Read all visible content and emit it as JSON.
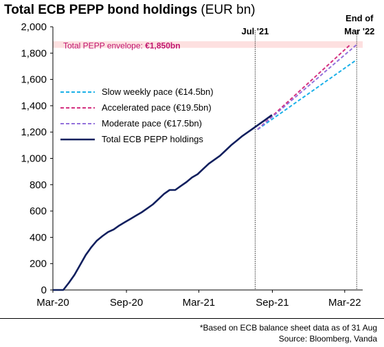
{
  "chart_data": {
    "type": "line",
    "title": "Total ECB PEPP bond holdings",
    "title_unit": "(EUR bn)",
    "ylim": [
      0,
      2000
    ],
    "yticks": [
      "0",
      "200",
      "400",
      "600",
      "800",
      "1,000",
      "1,200",
      "1,400",
      "1,600",
      "1,800",
      "2,000"
    ],
    "ytick_values": [
      0,
      200,
      400,
      600,
      800,
      1000,
      1200,
      1400,
      1600,
      1800,
      2000
    ],
    "xlim": [
      "2020-03-01",
      "2022-04-15"
    ],
    "xticks": [
      {
        "date": "2020-03-01",
        "label": "Mar-20"
      },
      {
        "date": "2020-09-01",
        "label": "Sep-20"
      },
      {
        "date": "2021-03-01",
        "label": "Mar-21"
      },
      {
        "date": "2021-09-01",
        "label": "Sep-21"
      },
      {
        "date": "2022-03-01",
        "label": "Mar-22"
      }
    ],
    "grid": false,
    "legend_placement": "left",
    "envelope": {
      "label": "Total PEPP envelope: ",
      "value_label": "€1,850bn",
      "value": 1850,
      "color": "#c0146e",
      "band_color": "#fde0e0"
    },
    "vlines": [
      {
        "date": "2021-07-20",
        "label": "Jul '21"
      },
      {
        "date": "2022-03-31",
        "label_line1": "End of",
        "label_line2": "Mar '22"
      }
    ],
    "series": [
      {
        "name": "Slow weekly pace (€14.5bn)",
        "color": "#1ab0e8",
        "dash": true,
        "x": [
          "2021-07-26",
          "2022-03-31"
        ],
        "y": [
          1220,
          1750
        ]
      },
      {
        "name": "Accelerated pace (€19.5bn)",
        "color": "#d4307f",
        "dash": true,
        "x": [
          "2021-07-26",
          "2022-03-15"
        ],
        "y": [
          1220,
          1865
        ]
      },
      {
        "name": "Moderate pace (€17.5bn)",
        "color": "#9370db",
        "dash": true,
        "x": [
          "2021-07-26",
          "2022-03-31"
        ],
        "y": [
          1220,
          1865
        ]
      },
      {
        "name": "Total ECB PEPP holdings",
        "color": "#0f1f5e",
        "dash": false,
        "x": [
          "2020-03-01",
          "2020-03-27",
          "2020-04-10",
          "2020-04-24",
          "2020-05-08",
          "2020-05-22",
          "2020-06-05",
          "2020-06-19",
          "2020-07-03",
          "2020-07-17",
          "2020-07-31",
          "2020-08-14",
          "2020-08-28",
          "2020-09-11",
          "2020-09-25",
          "2020-10-09",
          "2020-10-23",
          "2020-11-06",
          "2020-11-20",
          "2020-12-04",
          "2020-12-18",
          "2021-01-01",
          "2021-01-15",
          "2021-01-29",
          "2021-02-12",
          "2021-02-26",
          "2021-03-12",
          "2021-03-26",
          "2021-04-09",
          "2021-04-23",
          "2021-05-07",
          "2021-05-21",
          "2021-06-04",
          "2021-06-18",
          "2021-07-02",
          "2021-07-16",
          "2021-07-30",
          "2021-08-13",
          "2021-08-31"
        ],
        "y": [
          0,
          0,
          55,
          115,
          190,
          265,
          325,
          375,
          410,
          440,
          460,
          490,
          515,
          540,
          565,
          590,
          620,
          650,
          690,
          730,
          760,
          760,
          790,
          820,
          855,
          880,
          920,
          960,
          990,
          1020,
          1060,
          1100,
          1135,
          1170,
          1200,
          1230,
          1260,
          1290,
          1330
        ]
      }
    ]
  },
  "footnotes": {
    "line1": "*Based on ECB balance sheet data as of 31 Aug",
    "line2": "Source: Bloomberg, Vanda"
  }
}
